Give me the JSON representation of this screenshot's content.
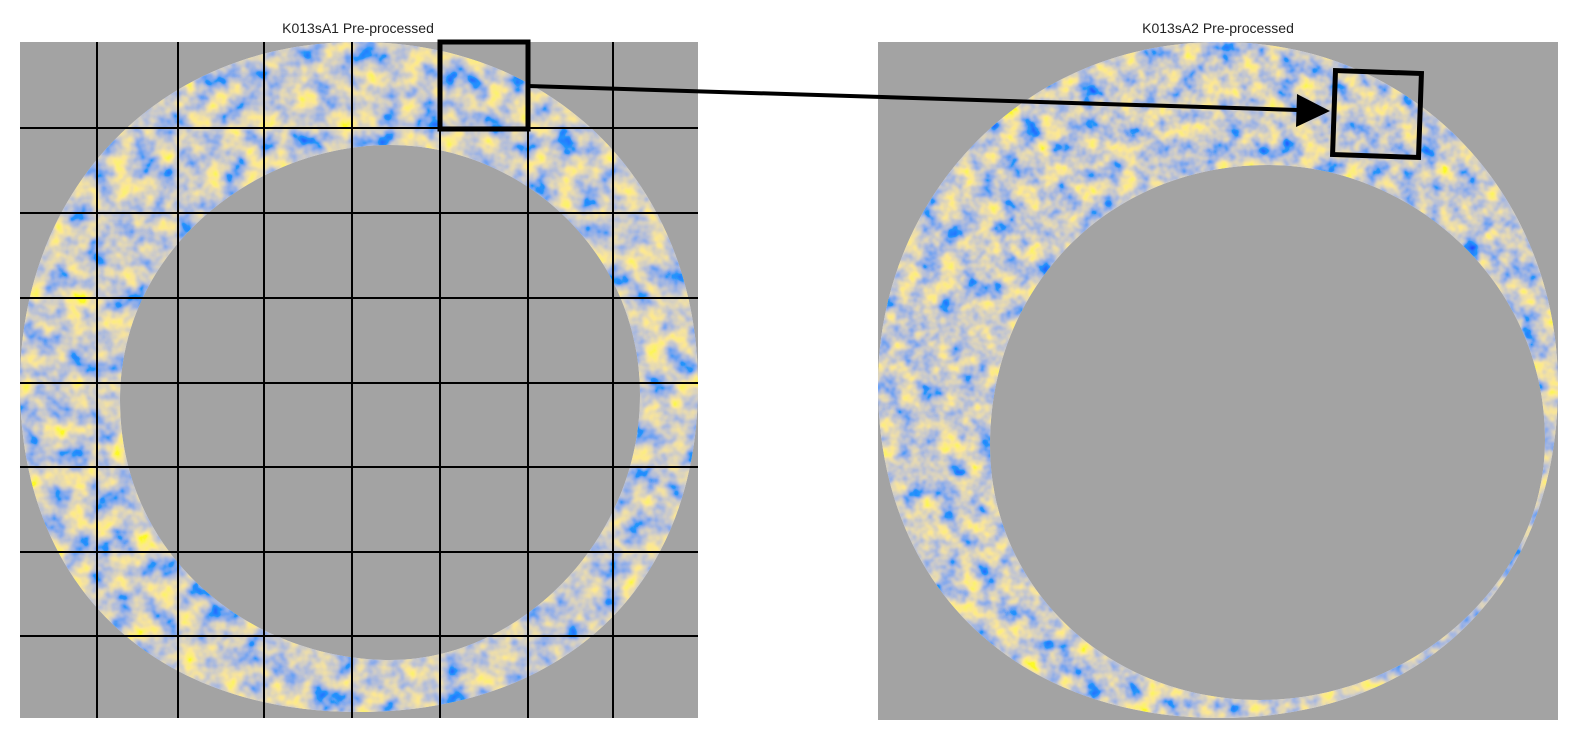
{
  "panels": [
    {
      "title": "K013sA1 Pre-processed",
      "grid": "7x8 overlay"
    },
    {
      "title": "K013sA2 Pre-processed",
      "grid": "none"
    }
  ],
  "colors": {
    "background": "#a3a3a3",
    "ring_base": "#ecebf6",
    "high": "#e58a2c",
    "low": "#5a3f98",
    "neutral": "#ffffff",
    "overlay": "#000000"
  },
  "annotation": {
    "type": "arrow",
    "meaning": "matching cell correspondence"
  }
}
